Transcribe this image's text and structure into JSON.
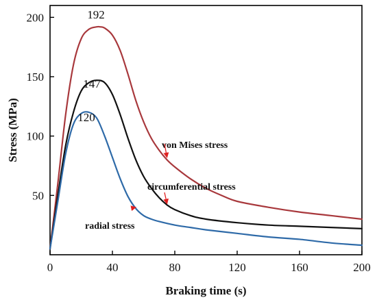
{
  "chart_data": {
    "type": "line",
    "title": "",
    "xlabel": "Braking time (s)",
    "ylabel": "Stress (MPa)",
    "xlim": [
      0,
      200
    ],
    "ylim": [
      0,
      210
    ],
    "xticks": [
      0,
      40,
      80,
      120,
      160,
      200
    ],
    "yticks": [
      50,
      100,
      150,
      200
    ],
    "grid": false,
    "legend": "none",
    "series": [
      {
        "name": "von Mises stress",
        "color": "#a8383c",
        "x": [
          0,
          5,
          10,
          15,
          20,
          25,
          30,
          32,
          35,
          40,
          45,
          50,
          55,
          60,
          65,
          70,
          75,
          80,
          90,
          100,
          110,
          120,
          140,
          160,
          180,
          200
        ],
        "y": [
          5,
          60,
          118,
          160,
          182,
          190,
          192,
          192,
          191,
          185,
          172,
          152,
          130,
          112,
          98,
          88,
          80,
          74,
          64,
          56,
          50,
          45,
          40,
          36,
          33,
          30
        ]
      },
      {
        "name": "circumferential stress",
        "color": "#111111",
        "x": [
          0,
          5,
          10,
          15,
          20,
          25,
          30,
          35,
          40,
          45,
          50,
          55,
          60,
          65,
          70,
          75,
          80,
          90,
          100,
          120,
          140,
          160,
          180,
          200
        ],
        "y": [
          5,
          50,
          92,
          120,
          138,
          145,
          147,
          145,
          135,
          118,
          98,
          80,
          66,
          56,
          48,
          42,
          38,
          33,
          30,
          27,
          25,
          24,
          23,
          22
        ]
      },
      {
        "name": "radial stress",
        "color": "#2e6aa8",
        "x": [
          0,
          5,
          10,
          15,
          20,
          25,
          30,
          35,
          40,
          45,
          50,
          55,
          60,
          65,
          70,
          80,
          90,
          100,
          120,
          140,
          160,
          180,
          200
        ],
        "y": [
          5,
          45,
          85,
          110,
          119,
          120,
          115,
          100,
          82,
          64,
          49,
          39,
          33,
          30,
          28,
          25,
          23,
          21,
          18,
          15,
          13,
          10,
          8
        ]
      }
    ],
    "annotations": [
      {
        "text": "192",
        "x": 32,
        "y": 192
      },
      {
        "text": "147",
        "x": 30,
        "y": 147
      },
      {
        "text": "120",
        "x": 26,
        "y": 120
      },
      {
        "text": "von Mises stress",
        "arrow_to": [
          75,
          82
        ]
      },
      {
        "text": "circumferential stress",
        "arrow_to": [
          75,
          43
        ]
      },
      {
        "text": "radial stress",
        "arrow_to": [
          55,
          40
        ]
      }
    ]
  }
}
